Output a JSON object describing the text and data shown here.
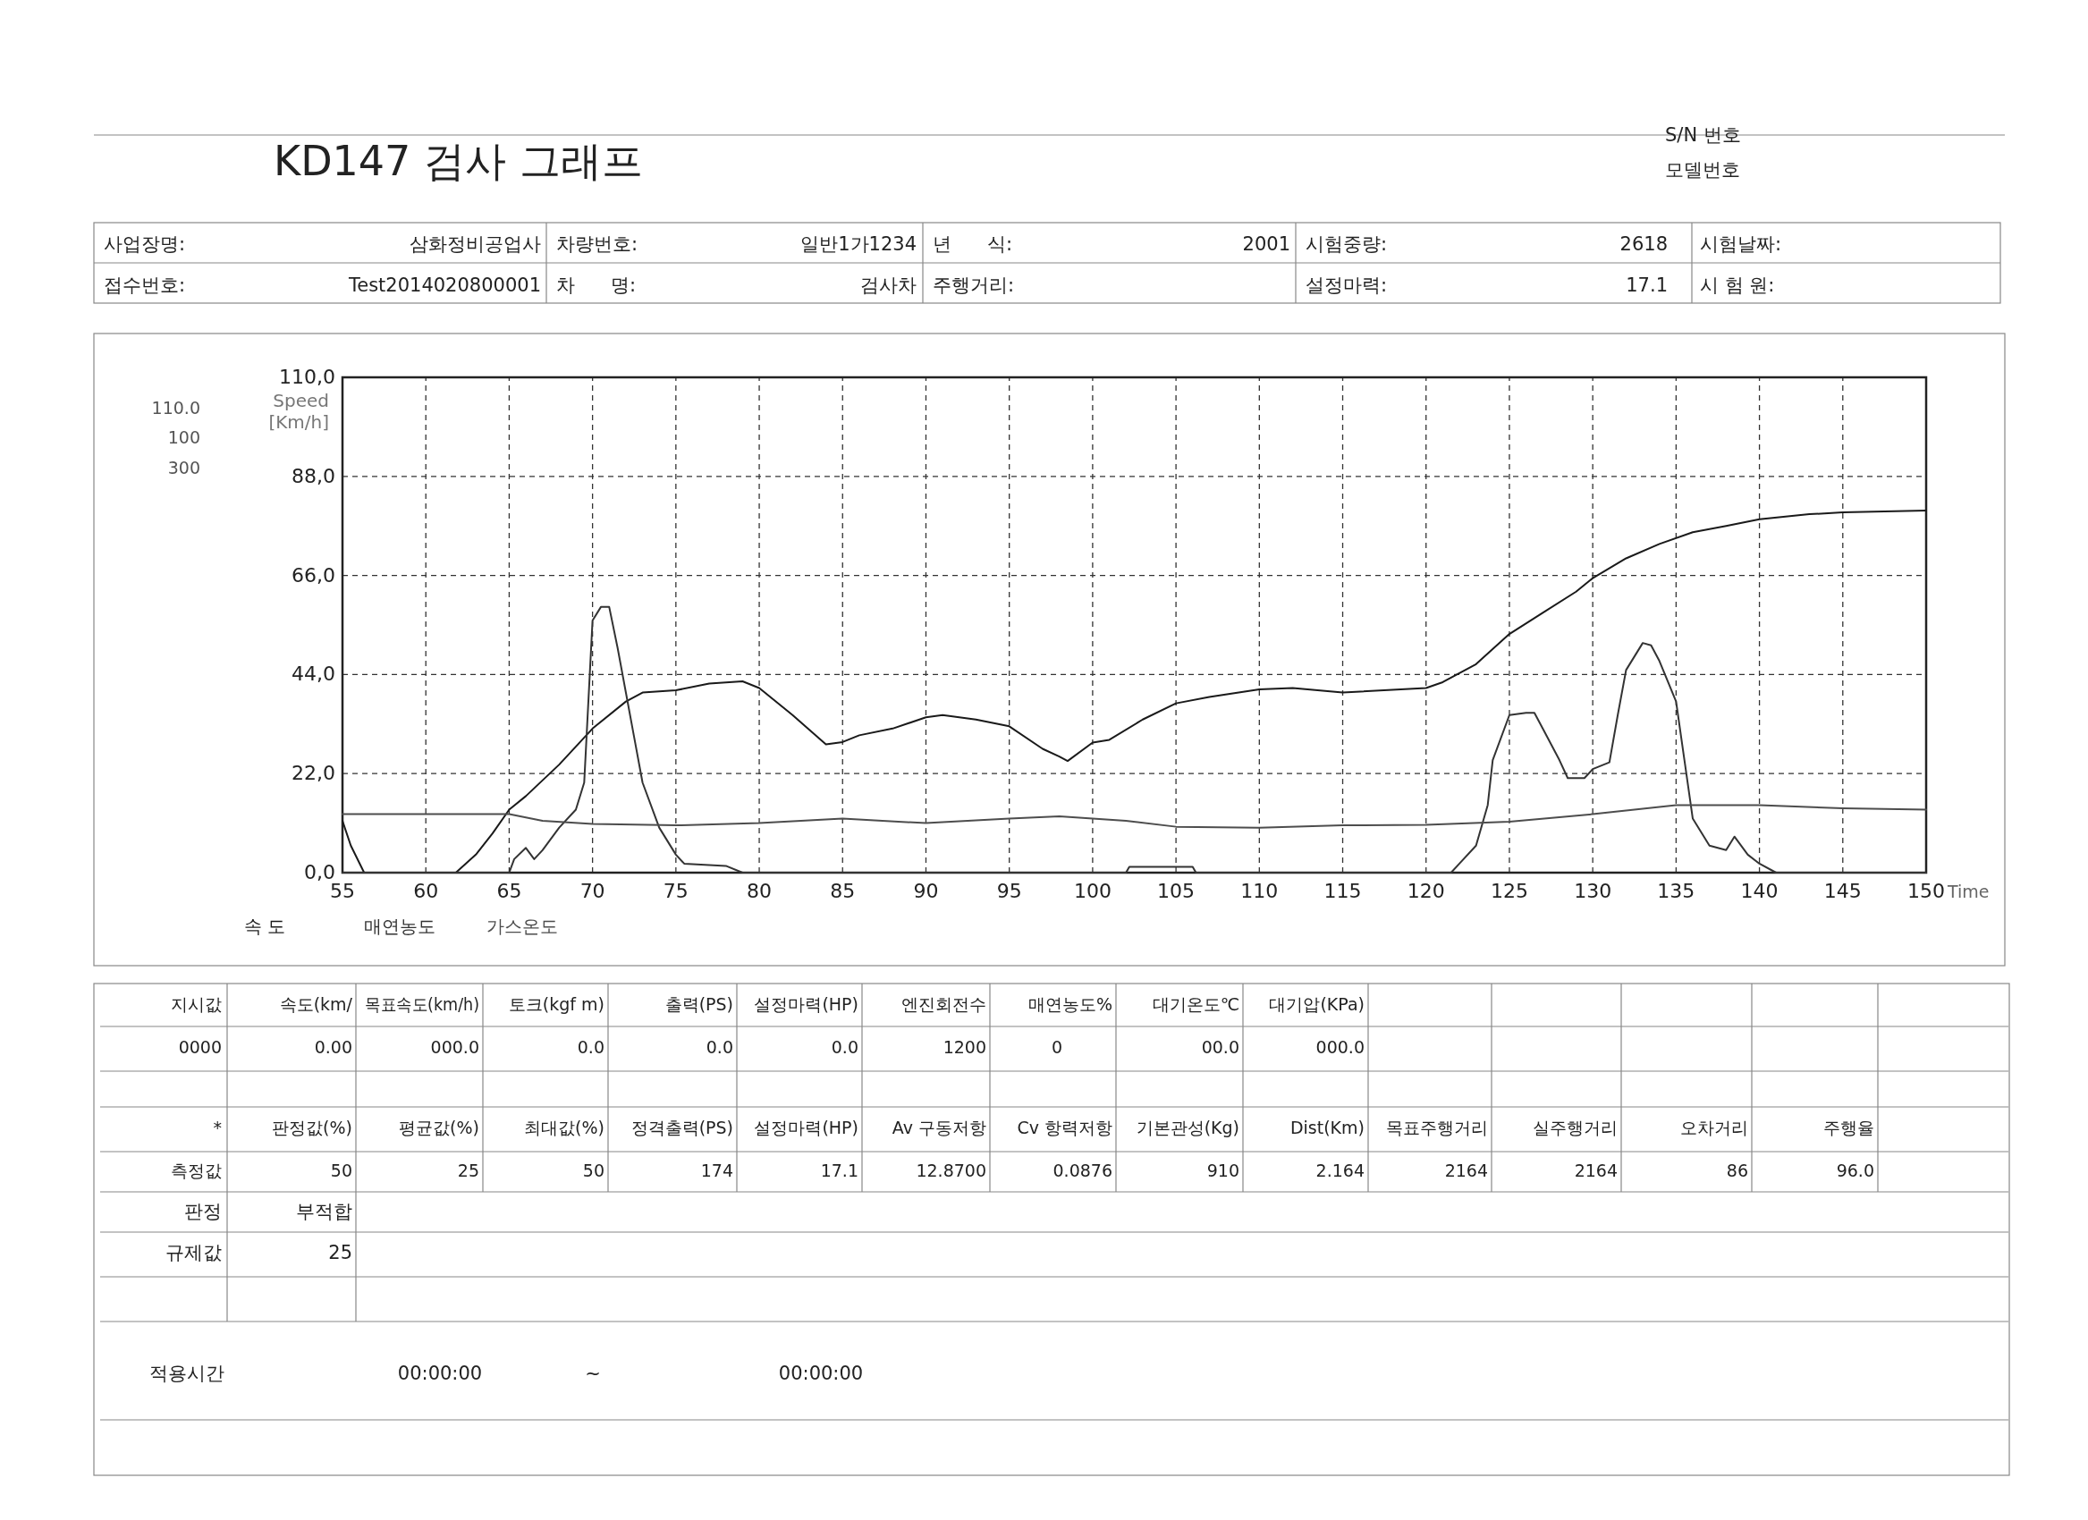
{
  "chart_data": {
    "type": "line",
    "title": "KD147 검사 그래프",
    "xlabel": "Time",
    "ylabel": "Speed [Km/h]",
    "xlim": [
      55,
      150
    ],
    "xticks": [
      55,
      60,
      65,
      70,
      75,
      80,
      85,
      90,
      95,
      100,
      105,
      110,
      115,
      120,
      125,
      130,
      135,
      140,
      145,
      150
    ],
    "ylim": [
      0,
      110
    ],
    "yticks": [
      {
        "value": 0,
        "label": "0,0"
      },
      {
        "value": 22,
        "label": "22,0"
      },
      {
        "value": 44,
        "label": "44,0"
      },
      {
        "value": 66,
        "label": "66,0"
      },
      {
        "value": 88,
        "label": "88,0"
      },
      {
        "value": 110,
        "label": "110,0"
      }
    ],
    "grid": true,
    "legend": "bottom",
    "marker": "none",
    "line_style": "solid",
    "series": [
      {
        "name": "속 도",
        "color": "#1a1a1a",
        "x": [
          55,
          55.5,
          56.3,
          61.8,
          63,
          64,
          65,
          66,
          68,
          70,
          72,
          73,
          75,
          77,
          79,
          80,
          82,
          84,
          85,
          86,
          88,
          90,
          91,
          93,
          95,
          97,
          98,
          98.5,
          100,
          101,
          103,
          105,
          107,
          110,
          112,
          115,
          120,
          121,
          123,
          125,
          127,
          129,
          130,
          132,
          134,
          136,
          138,
          140,
          143,
          145,
          150
        ],
        "values": [
          11.5,
          6,
          0,
          0,
          4,
          8.7,
          14,
          17,
          24,
          32,
          38,
          40,
          40.5,
          42,
          42.5,
          41,
          35,
          28.5,
          29,
          30.5,
          32,
          34.5,
          35,
          34,
          32.5,
          27.5,
          25.8,
          24.8,
          28.9,
          29.5,
          34,
          37.6,
          39,
          40.7,
          41,
          40,
          41,
          42.3,
          46.3,
          53,
          57.7,
          62.4,
          65.4,
          69.8,
          73,
          75.6,
          77,
          78.5,
          79.6,
          80,
          80.4
        ]
      },
      {
        "name": "매연농도",
        "color": "#333333",
        "x": [
          55,
          65,
          65.3,
          66,
          66.5,
          67,
          68,
          69,
          69.5,
          70,
          70.5,
          71,
          71.5,
          72,
          72.5,
          73,
          74,
          75,
          75.5,
          78,
          79,
          102,
          102.2,
          106,
          106.2,
          121.5,
          122,
          123,
          123.7,
          124,
          125,
          126,
          126.5,
          127,
          128,
          128.5,
          129.5,
          130,
          131,
          131.5,
          132,
          133,
          133.5,
          134,
          135,
          135.5,
          136,
          137,
          138,
          138.5,
          139.3,
          140,
          141,
          150
        ],
        "values": [
          0,
          0,
          3,
          5.5,
          3,
          5,
          10,
          14,
          20,
          56,
          59,
          59,
          50,
          40,
          30,
          20,
          10,
          4,
          2,
          1.5,
          0,
          0,
          1.3,
          1.3,
          0,
          0,
          2,
          6,
          15,
          25,
          35,
          35.5,
          35.5,
          32,
          25,
          21,
          21,
          23,
          24.5,
          35,
          45,
          51,
          50.5,
          47,
          38,
          25,
          12,
          6,
          5,
          8,
          4,
          2,
          0,
          0
        ]
      },
      {
        "name": "가스온도",
        "color": "#4d4d4d",
        "x": [
          55,
          65,
          67,
          70,
          75,
          80,
          85,
          90,
          95,
          98,
          100,
          102,
          105,
          110,
          115,
          120,
          125,
          130,
          135,
          140,
          145,
          150
        ],
        "values": [
          13,
          13,
          11.5,
          10.8,
          10.5,
          11,
          12,
          11,
          12,
          12.5,
          12,
          11.5,
          10.2,
          10,
          10.5,
          10.6,
          11.3,
          13,
          15,
          15,
          14.3,
          14
        ]
      }
    ],
    "annotations": [
      "S/N 번호",
      "모델번호",
      "사업장명:",
      "삼화정비공업사",
      "차량번호:",
      "일반1가1234",
      "년      식:",
      "2001",
      "시험중량:",
      "2618",
      "시험날짜:",
      "접수번호:",
      "Test2014020800001",
      "차      명:",
      "검사차",
      "주행거리:",
      "설정마력:",
      "17.1",
      "시 험 원:",
      "110.0",
      "100",
      "300",
      "지시값",
      "속도(km/",
      "목표속도(km/h)",
      "토크(kgf m)",
      "출력(PS)",
      "설정마력(HP)",
      "엔진회전수",
      "매연농도%",
      "대기온도℃",
      "대기압(KPa)",
      "0000",
      "0.00",
      "000.0",
      "0.0",
      "0.0",
      "0.0",
      "1200",
      "0",
      "00.0",
      "000.0",
      "*",
      "판정값(%)",
      "평균값(%)",
      "최대값(%)",
      "정격출력(PS)",
      "설정마력(HP)",
      "Av 구동저항",
      "Cv 항력저항",
      "기본관성(Kg)",
      "Dist(Km)",
      "목표주행거리",
      "실주행거리",
      "오차거리",
      "주행율",
      "측정값",
      "50",
      "25",
      "50",
      "174",
      "17.1",
      "12.8700",
      "0.0876",
      "910",
      "2.164",
      "2164",
      "2164",
      "86",
      "96.0",
      "판정",
      "부적합",
      "규제값",
      "25",
      "적용시간",
      "00:00:00",
      "~",
      "00:00:00"
    ]
  }
}
